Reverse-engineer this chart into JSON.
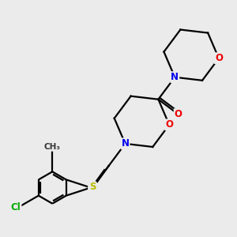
{
  "background_color": "#ebebeb",
  "bond_color": "#000000",
  "bond_lw": 1.6,
  "atom_colors": {
    "N": "#0000ee",
    "O": "#ee0000",
    "S": "#bbbb00",
    "Cl": "#00aa00",
    "C": "#000000"
  },
  "font_size_atom": 8.5,
  "font_size_methyl": 7.5
}
